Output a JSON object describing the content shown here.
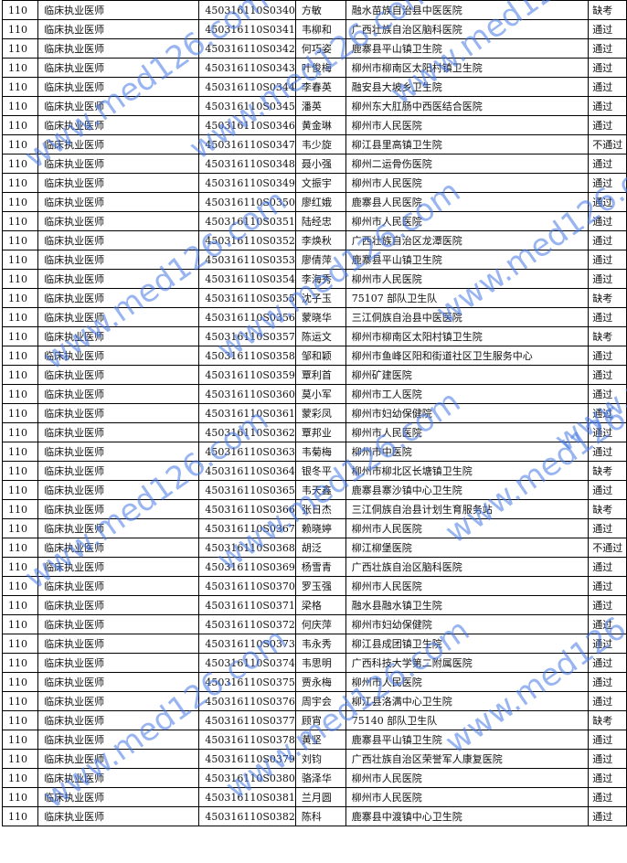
{
  "watermark": "www.med126.com",
  "columns_fixed": {
    "code": "110",
    "category": "临床执业医师"
  },
  "rows": [
    [
      "450316110S0340",
      "方敏",
      "融水苗族自治县中医医院",
      "缺考"
    ],
    [
      "450316110S0341",
      "韦柳和",
      "广西壮族自治区脑科医院",
      "通过"
    ],
    [
      "450316110S0342",
      "何巧姿",
      "鹿寨县平山镇卫生院",
      "通过"
    ],
    [
      "450316110S0343",
      "叶俊梅",
      "柳州市柳南区太阳村镇卫生院",
      "通过"
    ],
    [
      "450316110S0344",
      "李春英",
      "融安县大坡乡卫生院",
      "通过"
    ],
    [
      "450316110S0345",
      "潘英",
      "柳州东大肛肠中西医结合医院",
      "通过"
    ],
    [
      "450316110S0346",
      "黄金琳",
      "柳州市人民医院",
      "通过"
    ],
    [
      "450316110S0347",
      "韦少旋",
      "柳江县里高镇卫生院",
      "不通过"
    ],
    [
      "450316110S0348",
      "聂小强",
      "柳州二运骨伤医院",
      "通过"
    ],
    [
      "450316110S0349",
      "文振宇",
      "柳州市人民医院",
      "通过"
    ],
    [
      "450316110S0350",
      "廖红娥",
      "鹿寨县人民医院",
      "通过"
    ],
    [
      "450316110S0351",
      "陆经忠",
      "柳州市人民医院",
      "通过"
    ],
    [
      "450316110S0352",
      "李焕秋",
      "广西壮族自治区龙潭医院",
      "通过"
    ],
    [
      "450316110S0353",
      "廖倩萍",
      "鹿寨县平山镇卫生院",
      "通过"
    ],
    [
      "450316110S0354",
      "李海秀",
      "柳州市人民医院",
      "通过"
    ],
    [
      "450316110S0355",
      "沈子玉",
      "75107 部队卫生队",
      "缺考"
    ],
    [
      "450316110S0356",
      "蒙晓华",
      "三江侗族自治县中医医院",
      "通过"
    ],
    [
      "450316110S0357",
      "陈运文",
      "柳州市柳南区太阳村镇卫生院",
      "缺考"
    ],
    [
      "450316110S0358",
      "邹和颖",
      "柳州市鱼峰区阳和街道社区卫生服务中心",
      "通过"
    ],
    [
      "450316110S0359",
      "覃利首",
      "柳州矿建医院",
      "通过"
    ],
    [
      "450316110S0360",
      "莫小军",
      "柳州市工人医院",
      "通过"
    ],
    [
      "450316110S0361",
      "蒙彩凤",
      "柳州市妇幼保健院",
      "通过"
    ],
    [
      "450316110S0362",
      "覃邦业",
      "柳州市人民医院",
      "通过"
    ],
    [
      "450316110S0363",
      "韦菊梅",
      "柳州市中医院",
      "通过"
    ],
    [
      "450316110S0364",
      "银冬平",
      "柳州市柳北区长塘镇卫生院",
      "缺考"
    ],
    [
      "450316110S0365",
      "韦天鑫",
      "鹿寨县寨沙镇中心卫生院",
      "通过"
    ],
    [
      "450316110S0366",
      "张日杰",
      "三江侗族自治县计划生育服务站",
      "缺考"
    ],
    [
      "450316110S0367",
      "赖晓婷",
      "柳州市人民医院",
      "通过"
    ],
    [
      "450316110S0368",
      "胡泛",
      "柳江柳堡医院",
      "不通过"
    ],
    [
      "450316110S0369",
      "杨雪青",
      "广西壮族自治区脑科医院",
      "通过"
    ],
    [
      "450316110S0370",
      "罗玉强",
      "柳州市人民医院",
      "通过"
    ],
    [
      "450316110S0371",
      "梁格",
      "融水县融水镇卫生院",
      "通过"
    ],
    [
      "450316110S0372",
      "何庆萍",
      "柳州市妇幼保健院",
      "通过"
    ],
    [
      "450316110S0373",
      "韦永秀",
      "柳江县成团镇卫生院",
      "通过"
    ],
    [
      "450316110S0374",
      "韦思明",
      "广西科技大学第二附属医院",
      "通过"
    ],
    [
      "450316110S0375",
      "贾永梅",
      "柳州市人民医院",
      "通过"
    ],
    [
      "450316110S0376",
      "周宇会",
      "柳江县洛满中心卫生院",
      "通过"
    ],
    [
      "450316110S0377",
      "顾宵",
      "75140 部队卫生队",
      "缺考"
    ],
    [
      "450316110S0378",
      "黄坚",
      "鹿寨县平山镇卫生院",
      "通过"
    ],
    [
      "450316110S0379",
      "刘钧",
      "广西壮族自治区荣誉军人康复医院",
      "通过"
    ],
    [
      "450316110S0380",
      "骆泽华",
      "柳州市人民医院",
      "通过"
    ],
    [
      "450316110S0381",
      "兰月圆",
      "柳州市人民医院",
      "通过"
    ],
    [
      "450316110S0382",
      "陈科",
      "鹿寨县中渡镇中心卫生院",
      "通过"
    ]
  ]
}
